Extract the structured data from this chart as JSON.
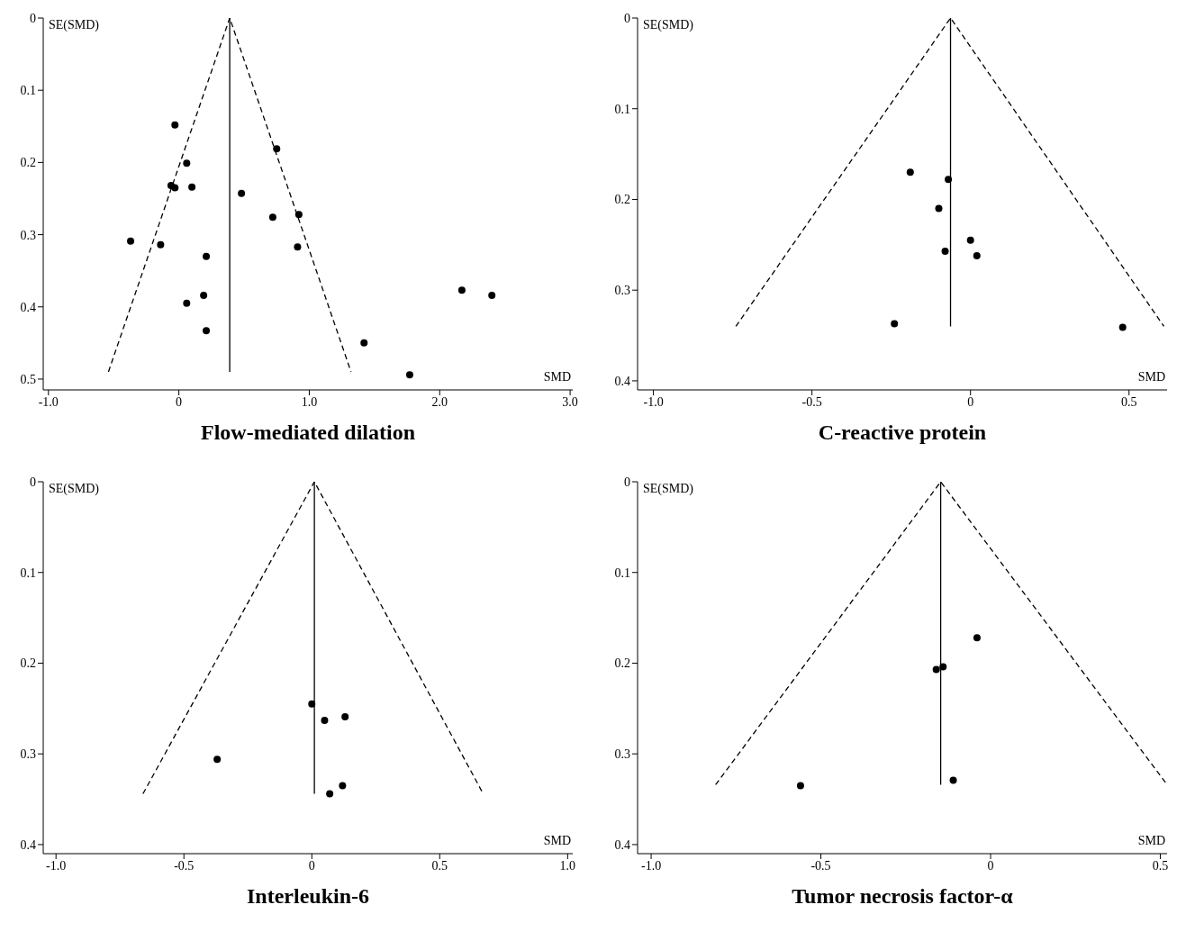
{
  "chart_data": [
    {
      "type": "scatter",
      "title": "Flow-mediated dilation",
      "xlabel": "SMD",
      "ylabel": "SE(SMD)",
      "xlim": [
        -1.04,
        3.02
      ],
      "xticks": [
        {
          "value": -1,
          "label": "-1.0"
        },
        0,
        {
          "value": 1,
          "label": "1.0"
        },
        {
          "value": 2,
          "label": "2.0"
        },
        {
          "value": 3,
          "label": "3.0"
        }
      ],
      "ylim": [
        0.515,
        0
      ],
      "yticks": [
        0,
        0.1,
        0.2,
        0.3,
        0.4,
        0.5
      ],
      "grid": false,
      "legend": false,
      "series": [
        {
          "marker": "circle",
          "color": "#000000",
          "x": [
            -0.03,
            0.75,
            0.06,
            -0.06,
            -0.03,
            0.1,
            0.48,
            0.72,
            0.92,
            -0.37,
            -0.14,
            0.91,
            0.21,
            0.19,
            0.06,
            2.17,
            2.4,
            0.21,
            1.42,
            1.77
          ],
          "values": [
            0.148,
            0.181,
            0.201,
            0.232,
            0.235,
            0.234,
            0.243,
            0.276,
            0.272,
            0.309,
            0.314,
            0.317,
            0.33,
            0.384,
            0.395,
            0.377,
            0.384,
            0.433,
            0.45,
            0.494
          ]
        },
        {
          "type": "line",
          "marker": "none",
          "line_style": "dashed",
          "color": "#000000",
          "x": [
            -0.54,
            0.39,
            1.32
          ],
          "values": [
            0.49,
            0,
            0.49
          ]
        },
        {
          "type": "line",
          "marker": "none",
          "line_style": "solid",
          "color": "#000000",
          "x": [
            0.39,
            0.39
          ],
          "values": [
            0,
            0.49
          ]
        }
      ]
    },
    {
      "type": "scatter",
      "title": "C-reactive protein",
      "xlabel": "SMD",
      "ylabel": "SE(SMD)",
      "xlim": [
        -1.05,
        0.62
      ],
      "xticks": [
        {
          "value": -1,
          "label": "-1.0"
        },
        -0.5,
        0,
        0.5
      ],
      "ylim": [
        0.41,
        0
      ],
      "yticks": [
        0,
        0.1,
        0.2,
        0.3,
        0.4
      ],
      "grid": false,
      "legend": false,
      "series": [
        {
          "marker": "circle",
          "color": "#000000",
          "x": [
            -0.19,
            -0.07,
            -0.1,
            0.0,
            -0.08,
            0.02,
            -0.24,
            0.48
          ],
          "values": [
            0.17,
            0.178,
            0.21,
            0.245,
            0.257,
            0.262,
            0.337,
            0.341
          ]
        },
        {
          "type": "line",
          "marker": "none",
          "line_style": "dashed",
          "color": "#000000",
          "x": [
            -0.74,
            -0.063,
            0.61
          ],
          "values": [
            0.34,
            0,
            0.34
          ]
        },
        {
          "type": "line",
          "marker": "none",
          "line_style": "solid",
          "color": "#000000",
          "x": [
            -0.063,
            -0.063
          ],
          "values": [
            0,
            0.34
          ]
        }
      ]
    },
    {
      "type": "scatter",
      "title": "Interleukin-6",
      "xlabel": "SMD",
      "ylabel": "SE(SMD)",
      "xlim": [
        -1.05,
        1.02
      ],
      "xticks": [
        {
          "value": -1,
          "label": "-1.0"
        },
        -0.5,
        0,
        0.5,
        {
          "value": 1,
          "label": "1.0"
        }
      ],
      "ylim": [
        0.41,
        0
      ],
      "yticks": [
        0,
        0.1,
        0.2,
        0.3,
        0.4
      ],
      "grid": false,
      "legend": false,
      "series": [
        {
          "marker": "circle",
          "color": "#000000",
          "x": [
            0.0,
            0.05,
            0.13,
            -0.37,
            0.12,
            0.07
          ],
          "values": [
            0.245,
            0.263,
            0.259,
            0.306,
            0.335,
            0.344
          ]
        },
        {
          "type": "line",
          "marker": "none",
          "line_style": "dashed",
          "color": "#000000",
          "x": [
            -0.66,
            0.01,
            0.67
          ],
          "values": [
            0.344,
            0,
            0.344
          ]
        },
        {
          "type": "line",
          "marker": "none",
          "line_style": "solid",
          "color": "#000000",
          "x": [
            0.01,
            0.01
          ],
          "values": [
            0,
            0.344
          ]
        }
      ]
    },
    {
      "type": "scatter",
      "title": "Tumor necrosis factor-α",
      "xlabel": "SMD",
      "ylabel": "SE(SMD)",
      "xlim": [
        -1.04,
        0.52
      ],
      "xticks": [
        {
          "value": -1,
          "label": "-1.0"
        },
        -0.5,
        0,
        0.5
      ],
      "ylim": [
        0.41,
        0
      ],
      "yticks": [
        0,
        0.1,
        0.2,
        0.3,
        0.4
      ],
      "grid": false,
      "legend": false,
      "series": [
        {
          "marker": "circle",
          "color": "#000000",
          "x": [
            -0.04,
            -0.14,
            -0.16,
            -0.11,
            -0.56
          ],
          "values": [
            0.172,
            0.204,
            0.207,
            0.329,
            0.335
          ]
        },
        {
          "type": "line",
          "marker": "none",
          "line_style": "dashed",
          "color": "#000000",
          "x": [
            -0.81,
            -0.147,
            0.52
          ],
          "values": [
            0.334,
            0,
            0.334
          ]
        },
        {
          "type": "line",
          "marker": "none",
          "line_style": "solid",
          "color": "#000000",
          "x": [
            -0.147,
            -0.147
          ],
          "values": [
            0,
            0.334
          ]
        }
      ]
    }
  ]
}
